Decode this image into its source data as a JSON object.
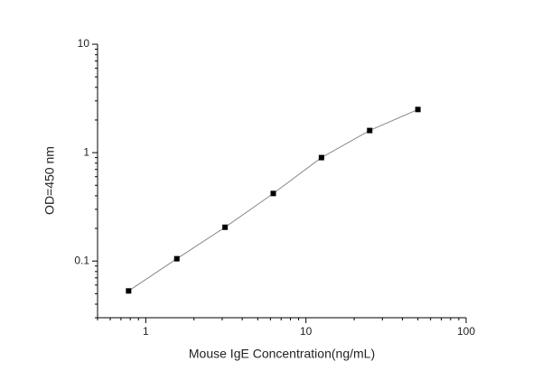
{
  "chart_data": {
    "type": "scatter",
    "x_label": "Mouse IgE  Concentration(ng/mL)",
    "y_label": "OD=450 nm",
    "x": [
      0.78125,
      1.5625,
      3.125,
      6.25,
      12.5,
      25,
      50
    ],
    "series": [
      {
        "color": "#000000",
        "line_color": "#888888",
        "values": [
          0.053,
          0.105,
          0.205,
          0.42,
          0.9,
          1.6,
          2.5
        ]
      }
    ],
    "xlim": [
      0.5,
      100
    ],
    "ylim": [
      0.03,
      10
    ],
    "xticks": [
      1,
      10,
      100
    ],
    "yticks": [
      0.1,
      1,
      10
    ],
    "xlog": true,
    "ylog": true,
    "minor_ticks": true,
    "grid": false
  }
}
